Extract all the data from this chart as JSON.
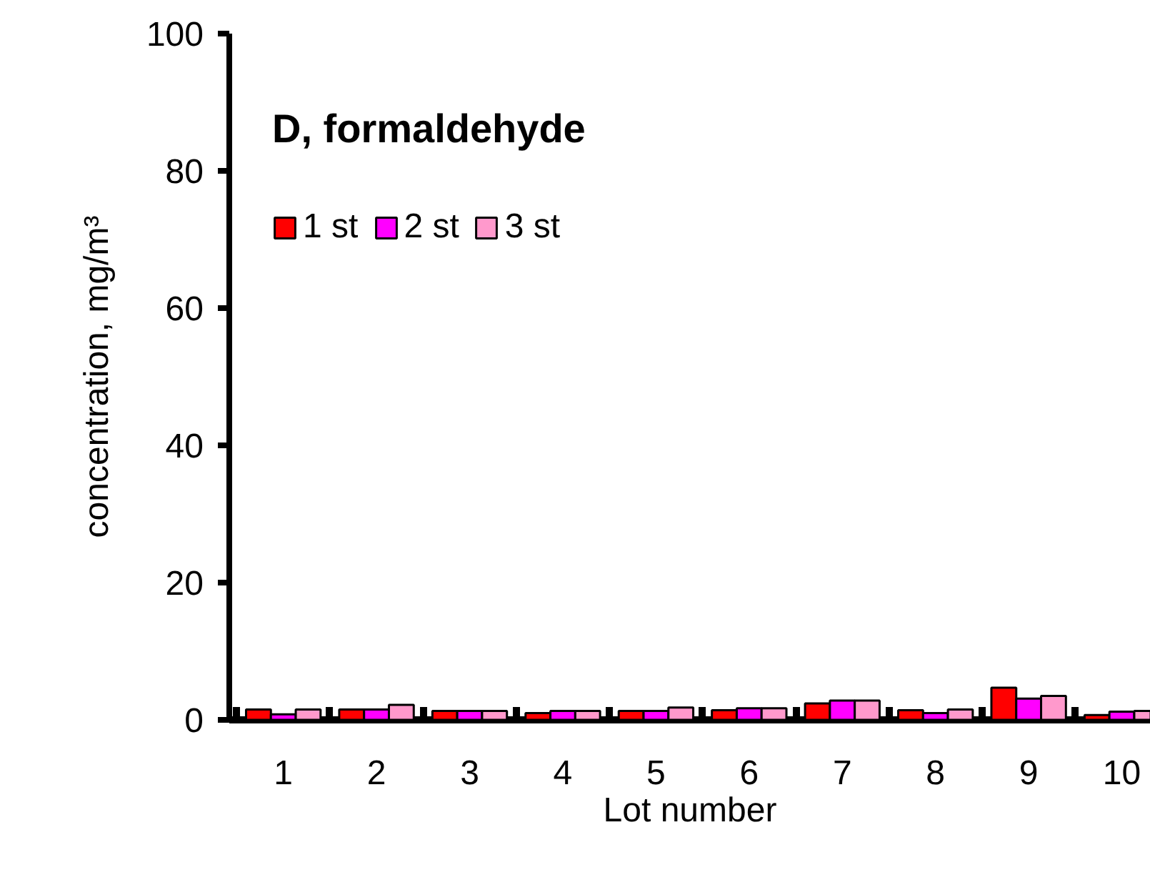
{
  "chart_data": {
    "type": "bar",
    "title": "D, formaldehyde",
    "xlabel": "Lot number",
    "ylabel": "concentration, mg/m³",
    "categories": [
      "1",
      "2",
      "3",
      "4",
      "5",
      "6",
      "7",
      "8",
      "9",
      "10"
    ],
    "series": [
      {
        "name": "1 st",
        "color": "#ff0000",
        "values": [
          1.5,
          1.5,
          1.3,
          1.0,
          1.3,
          1.4,
          2.4,
          1.4,
          4.7,
          0.7
        ]
      },
      {
        "name": "2 st",
        "color": "#ff00ff",
        "values": [
          0.8,
          1.5,
          1.3,
          1.3,
          1.3,
          1.7,
          2.8,
          1.0,
          3.1,
          1.2
        ]
      },
      {
        "name": "3 st",
        "color": "#ff99cc",
        "values": [
          1.5,
          2.2,
          1.3,
          1.3,
          1.8,
          1.7,
          2.8,
          1.5,
          3.5,
          1.3
        ]
      }
    ],
    "ylim": [
      0,
      100
    ],
    "yticks": [
      0,
      20,
      40,
      60,
      80,
      100
    ],
    "grid": false,
    "legend": "top left"
  }
}
